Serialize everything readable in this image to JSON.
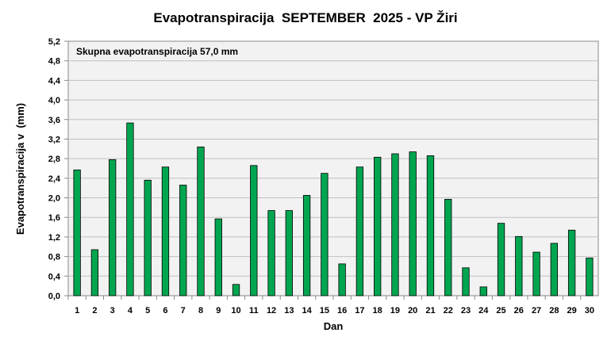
{
  "chart_data": {
    "type": "bar",
    "title": "Evapotranspiracija  SEPTEMBER  2025 - VP Žiri",
    "xlabel": "Dan",
    "ylabel": "Evapotranspiracija v  (mm)",
    "annotation": "Skupna evapotranspiracija 57,0 mm",
    "categories": [
      "1",
      "2",
      "3",
      "4",
      "5",
      "6",
      "7",
      "8",
      "9",
      "10",
      "11",
      "12",
      "13",
      "14",
      "15",
      "16",
      "17",
      "18",
      "19",
      "20",
      "21",
      "22",
      "23",
      "24",
      "25",
      "26",
      "27",
      "28",
      "29",
      "30"
    ],
    "values": [
      2.57,
      0.94,
      2.78,
      3.53,
      2.36,
      2.63,
      2.26,
      3.04,
      1.57,
      0.23,
      2.66,
      1.74,
      1.74,
      2.05,
      2.5,
      0.65,
      2.63,
      2.83,
      2.9,
      2.94,
      2.86,
      1.97,
      0.57,
      0.18,
      1.48,
      1.21,
      0.89,
      1.07,
      1.34,
      0.77
    ],
    "yticks": [
      "0,0",
      "0,4",
      "0,8",
      "1,2",
      "1,6",
      "2,0",
      "2,4",
      "2,8",
      "3,2",
      "3,6",
      "4,0",
      "4,4",
      "4,8",
      "5,2"
    ],
    "ylim": [
      0,
      5.2
    ],
    "grid": true,
    "colors": {
      "bar": "#00a550",
      "bar_edge": "#000000",
      "plot_bg": "#f2f2f2",
      "grid": "#bfbfbf"
    }
  }
}
